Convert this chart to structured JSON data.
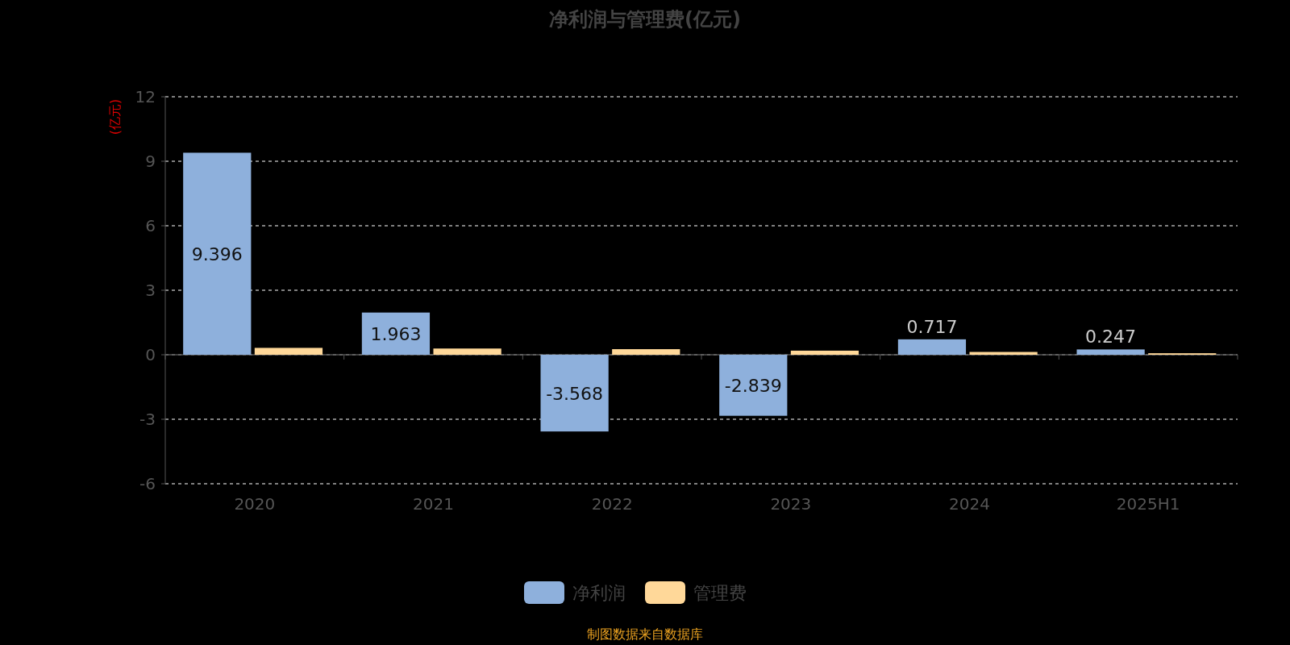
{
  "chart_data": {
    "type": "bar",
    "title": "净利润与管理费(亿元)",
    "ylabel": "(亿元)",
    "categories": [
      "2020",
      "2021",
      "2022",
      "2023",
      "2024",
      "2025H1"
    ],
    "series": [
      {
        "name": "净利润",
        "color": "#8eb0dc",
        "values": [
          9.396,
          1.963,
          -3.568,
          -2.839,
          0.717,
          0.247
        ],
        "value_labels": [
          "9.396",
          "1.963",
          "-3.568",
          "-2.839",
          "0.717",
          "0.247"
        ]
      },
      {
        "name": "管理费",
        "color": "#ffd899",
        "values": [
          0.32,
          0.29,
          0.26,
          0.19,
          0.13,
          0.07
        ]
      }
    ],
    "ylim": [
      -6,
      12
    ],
    "yticks": [
      -6,
      -3,
      0,
      3,
      6,
      9,
      12
    ],
    "grid": "y",
    "legend": "bottom",
    "annotations": [
      "制图数据来自数据库"
    ]
  }
}
